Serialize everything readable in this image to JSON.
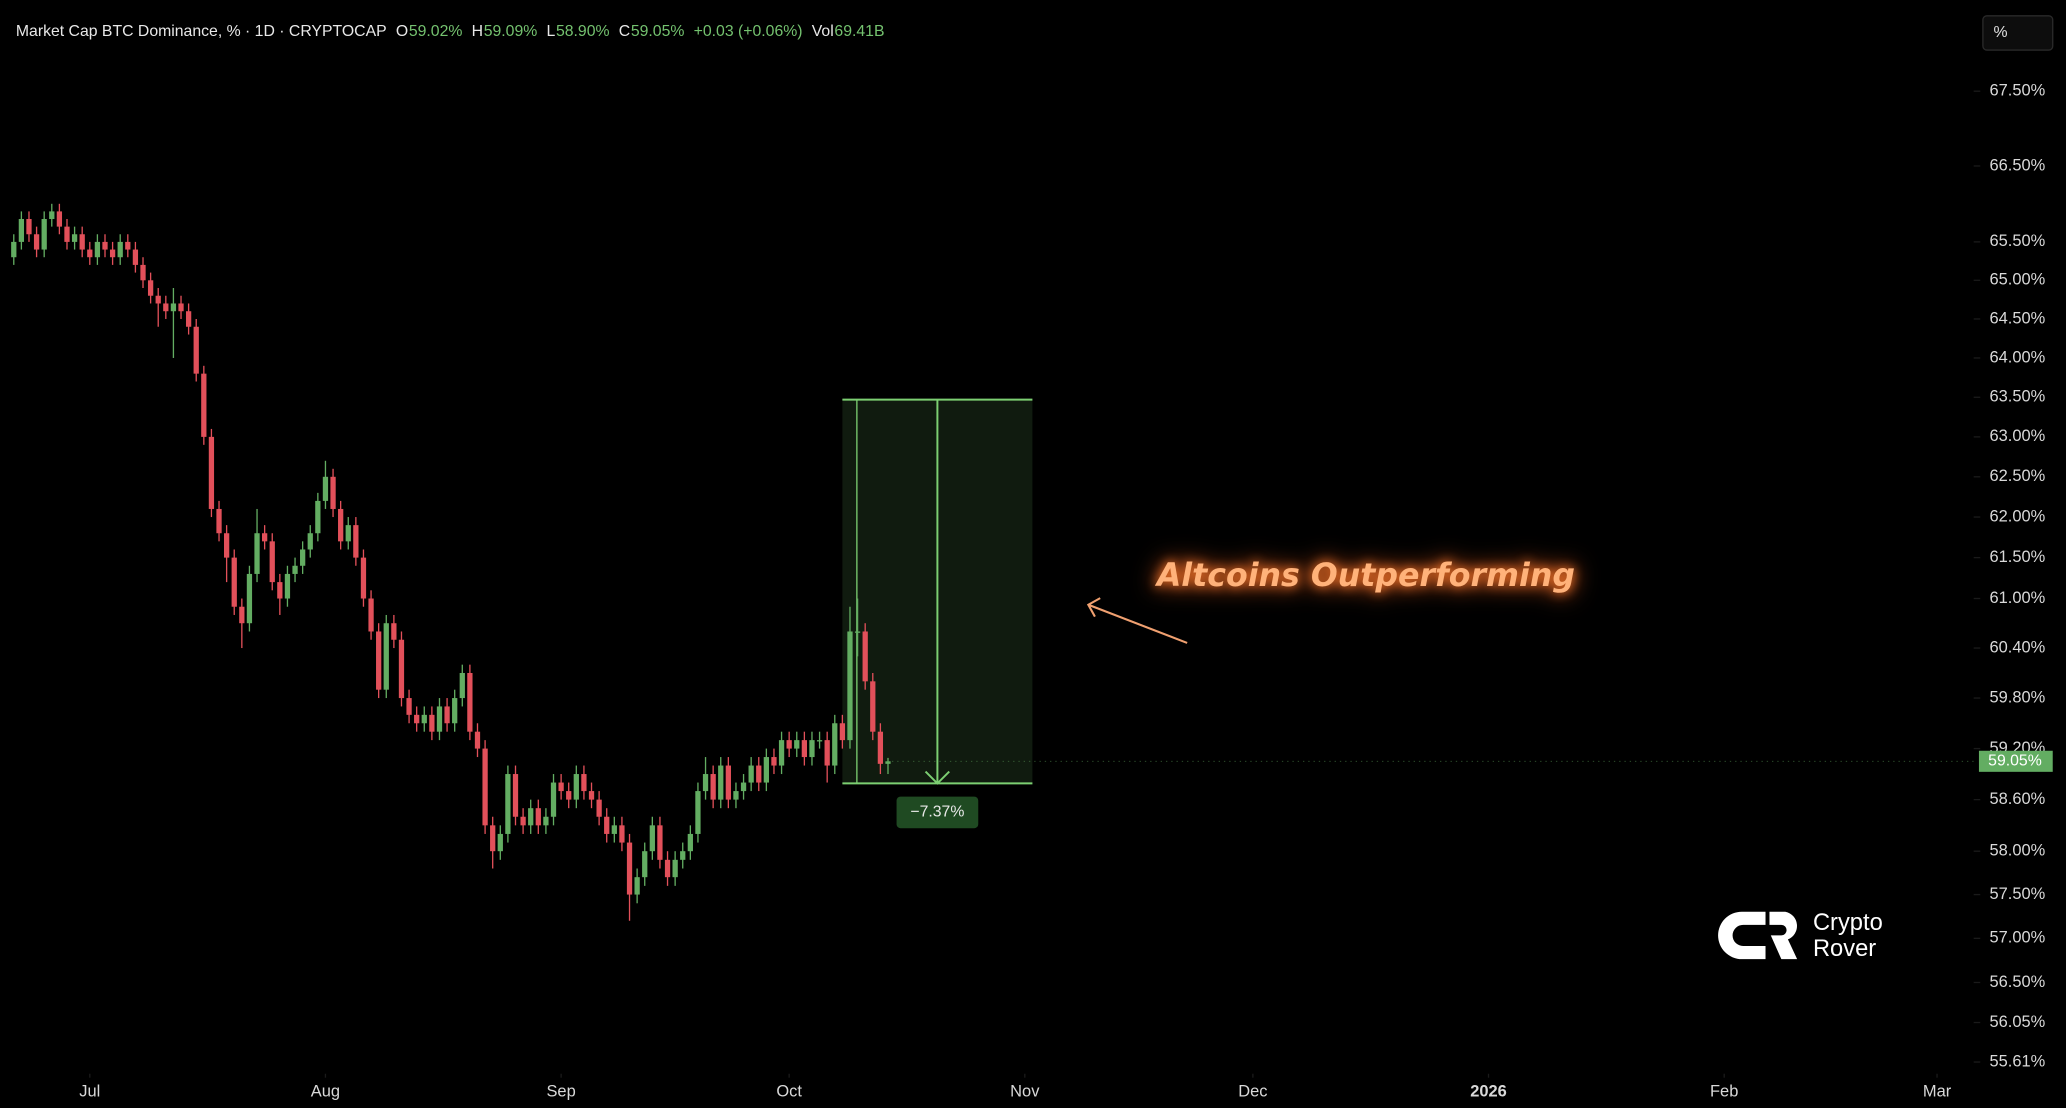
{
  "header": {
    "title": "Market Cap BTC Dominance, % · 1D · CRYPTOCAP",
    "ohlc": [
      {
        "key": "O",
        "value": "59.02%"
      },
      {
        "key": "H",
        "value": "59.09%"
      },
      {
        "key": "L",
        "value": "58.90%"
      },
      {
        "key": "C",
        "value": "59.05%"
      }
    ],
    "change": "+0.03 (+0.06%)",
    "vol_key": "Vol",
    "vol": "69.41B"
  },
  "percent_button": "%",
  "logo": [
    "Crypto",
    "Rover"
  ],
  "chart_data": {
    "type": "candlestick",
    "log": true,
    "up_color": "#63ad62",
    "down_color": "#e2505a",
    "xlim": [
      -11.8,
      247.3
    ],
    "ylim": [
      55.48,
      68.74
    ],
    "xticks": [
      {
        "value": 0,
        "label": "Jul"
      },
      {
        "value": 31,
        "label": "Aug"
      },
      {
        "value": 62,
        "label": "Sep"
      },
      {
        "value": 92,
        "label": "Oct"
      },
      {
        "value": 123,
        "label": "Nov"
      },
      {
        "value": 153,
        "label": "Dec"
      },
      {
        "value": 184,
        "label": "2026"
      },
      {
        "value": 215,
        "label": "Feb"
      },
      {
        "value": 243,
        "label": "Mar"
      }
    ],
    "yticks": [
      {
        "value": 67.5,
        "label": "67.50%"
      },
      {
        "value": 66.5,
        "label": "66.50%"
      },
      {
        "value": 65.5,
        "label": "65.50%"
      },
      {
        "value": 65,
        "label": "65.00%"
      },
      {
        "value": 64.5,
        "label": "64.50%"
      },
      {
        "value": 64,
        "label": "64.00%"
      },
      {
        "value": 63.5,
        "label": "63.50%"
      },
      {
        "value": 63,
        "label": "63.00%"
      },
      {
        "value": 62.5,
        "label": "62.50%"
      },
      {
        "value": 62,
        "label": "62.00%"
      },
      {
        "value": 61.5,
        "label": "61.50%"
      },
      {
        "value": 61,
        "label": "61.00%"
      },
      {
        "value": 60.4,
        "label": "60.40%"
      },
      {
        "value": 59.8,
        "label": "59.80%"
      },
      {
        "value": 59.2,
        "label": "59.20%"
      },
      {
        "value": 58.6,
        "label": "58.60%"
      },
      {
        "value": 58,
        "label": "58.00%"
      },
      {
        "value": 57.5,
        "label": "57.50%"
      },
      {
        "value": 57,
        "label": "57.00%"
      },
      {
        "value": 56.5,
        "label": "56.50%"
      },
      {
        "value": 56.05,
        "label": "56.05%"
      },
      {
        "value": 55.61,
        "label": "55.61%"
      }
    ],
    "x": [
      -10,
      -9,
      -8,
      -7,
      -6,
      -5,
      -4,
      -3,
      -2,
      -1,
      0,
      1,
      2,
      3,
      4,
      5,
      6,
      7,
      8,
      9,
      10,
      11,
      12,
      13,
      14,
      15,
      16,
      17,
      18,
      19,
      20,
      21,
      22,
      23,
      24,
      25,
      26,
      27,
      28,
      29,
      30,
      31,
      32,
      33,
      34,
      35,
      36,
      37,
      38,
      39,
      40,
      41,
      42,
      43,
      44,
      45,
      46,
      47,
      48,
      49,
      50,
      51,
      52,
      53,
      54,
      55,
      56,
      57,
      58,
      59,
      60,
      61,
      62,
      63,
      64,
      65,
      66,
      67,
      68,
      69,
      70,
      71,
      72,
      73,
      74,
      75,
      76,
      77,
      78,
      79,
      80,
      81,
      82,
      83,
      84,
      85,
      86,
      87,
      88,
      89,
      90,
      91,
      92,
      93,
      94,
      95,
      96,
      97,
      98,
      99,
      100,
      101,
      102,
      103,
      104,
      105
    ],
    "open": [
      65.3,
      65.5,
      65.8,
      65.6,
      65.4,
      65.8,
      65.9,
      65.7,
      65.5,
      65.6,
      65.4,
      65.3,
      65.5,
      65.4,
      65.3,
      65.5,
      65.4,
      65.2,
      65.0,
      64.8,
      64.7,
      64.6,
      64.7,
      64.6,
      64.4,
      63.8,
      63.0,
      62.1,
      61.8,
      61.5,
      60.9,
      60.7,
      61.3,
      61.8,
      61.7,
      61.2,
      61.0,
      61.3,
      61.4,
      61.6,
      61.8,
      62.2,
      62.5,
      62.1,
      61.7,
      61.9,
      61.5,
      61.0,
      60.6,
      59.9,
      60.7,
      60.5,
      59.8,
      59.6,
      59.5,
      59.6,
      59.4,
      59.7,
      59.5,
      59.8,
      60.1,
      59.4,
      59.2,
      58.3,
      58.0,
      58.2,
      58.9,
      58.4,
      58.3,
      58.5,
      58.3,
      58.4,
      58.8,
      58.7,
      58.6,
      58.9,
      58.7,
      58.6,
      58.4,
      58.2,
      58.3,
      58.1,
      57.5,
      57.7,
      58.0,
      58.3,
      57.9,
      57.7,
      57.9,
      58.0,
      58.2,
      58.7,
      58.9,
      58.6,
      59.0,
      58.6,
      58.7,
      58.8,
      59.0,
      58.8,
      59.1,
      59.0,
      59.3,
      59.2,
      59.3,
      59.1,
      59.3,
      59.3,
      59.0,
      59.5,
      59.3,
      60.6,
      60.6,
      60.0,
      59.4,
      59.02
    ],
    "high": [
      65.6,
      65.9,
      65.9,
      65.7,
      65.9,
      66.0,
      66.0,
      65.8,
      65.7,
      65.7,
      65.5,
      65.6,
      65.6,
      65.5,
      65.6,
      65.6,
      65.5,
      65.3,
      65.1,
      64.9,
      64.8,
      64.9,
      64.8,
      64.7,
      64.5,
      63.9,
      63.1,
      62.2,
      61.9,
      61.6,
      61.0,
      61.4,
      62.1,
      61.9,
      61.8,
      61.3,
      61.4,
      61.5,
      61.7,
      61.9,
      62.3,
      62.7,
      62.6,
      62.2,
      62.0,
      62.0,
      61.6,
      61.1,
      60.7,
      60.8,
      60.8,
      60.6,
      59.9,
      59.7,
      59.7,
      59.7,
      59.8,
      59.8,
      59.9,
      60.2,
      60.2,
      59.5,
      59.3,
      58.4,
      58.3,
      59.0,
      59.0,
      58.5,
      58.6,
      58.6,
      58.5,
      58.9,
      58.9,
      58.8,
      59.0,
      59.0,
      58.8,
      58.7,
      58.5,
      58.4,
      58.4,
      58.2,
      57.8,
      58.1,
      58.4,
      58.4,
      58.0,
      58.0,
      58.1,
      58.3,
      58.8,
      59.1,
      59.0,
      59.1,
      59.1,
      58.8,
      58.9,
      59.1,
      59.1,
      59.2,
      59.2,
      59.4,
      59.4,
      59.4,
      59.4,
      59.4,
      59.4,
      59.4,
      59.6,
      59.6,
      60.9,
      61.0,
      60.7,
      60.1,
      59.5,
      59.09
    ],
    "low": [
      65.2,
      65.4,
      65.5,
      65.3,
      65.3,
      65.7,
      65.6,
      65.4,
      65.4,
      65.3,
      65.2,
      65.2,
      65.3,
      65.2,
      65.2,
      65.3,
      65.1,
      64.9,
      64.7,
      64.4,
      64.5,
      64.0,
      64.5,
      64.3,
      63.7,
      62.9,
      62.0,
      61.7,
      61.2,
      60.8,
      60.4,
      60.6,
      61.2,
      61.6,
      61.1,
      60.8,
      60.9,
      61.2,
      61.3,
      61.5,
      61.7,
      62.1,
      62.0,
      61.6,
      61.6,
      61.4,
      60.9,
      60.5,
      59.8,
      59.8,
      60.4,
      59.7,
      59.5,
      59.4,
      59.4,
      59.3,
      59.3,
      59.4,
      59.4,
      59.7,
      59.3,
      59.1,
      58.2,
      57.8,
      57.9,
      58.1,
      58.3,
      58.2,
      58.2,
      58.2,
      58.2,
      58.3,
      58.6,
      58.5,
      58.5,
      58.6,
      58.5,
      58.3,
      58.1,
      58.1,
      58.0,
      57.2,
      57.4,
      57.6,
      57.9,
      57.8,
      57.6,
      57.6,
      57.8,
      57.9,
      58.1,
      58.6,
      58.5,
      58.5,
      58.5,
      58.5,
      58.6,
      58.7,
      58.7,
      58.7,
      58.9,
      58.9,
      59.1,
      59.1,
      59.0,
      59.0,
      59.2,
      58.8,
      58.9,
      59.2,
      59.2,
      60.3,
      59.9,
      59.3,
      58.9,
      58.9
    ],
    "close": [
      65.5,
      65.8,
      65.6,
      65.4,
      65.8,
      65.9,
      65.7,
      65.5,
      65.6,
      65.4,
      65.3,
      65.5,
      65.4,
      65.3,
      65.5,
      65.4,
      65.2,
      65.0,
      64.8,
      64.7,
      64.6,
      64.7,
      64.6,
      64.4,
      63.8,
      63.0,
      62.1,
      61.8,
      61.5,
      60.9,
      60.7,
      61.3,
      61.8,
      61.7,
      61.2,
      61.0,
      61.3,
      61.4,
      61.6,
      61.8,
      62.2,
      62.5,
      62.1,
      61.7,
      61.9,
      61.5,
      61.0,
      60.6,
      59.9,
      60.7,
      60.5,
      59.8,
      59.6,
      59.5,
      59.6,
      59.4,
      59.7,
      59.5,
      59.8,
      60.1,
      59.4,
      59.2,
      58.3,
      58.0,
      58.2,
      58.9,
      58.4,
      58.3,
      58.5,
      58.3,
      58.4,
      58.8,
      58.7,
      58.6,
      58.9,
      58.7,
      58.6,
      58.4,
      58.2,
      58.3,
      58.1,
      57.5,
      57.7,
      58.0,
      58.3,
      57.9,
      57.7,
      57.9,
      58.0,
      58.2,
      58.7,
      58.9,
      58.6,
      59.0,
      58.6,
      58.7,
      58.8,
      59.0,
      58.8,
      59.1,
      59.0,
      59.3,
      59.2,
      59.3,
      59.1,
      59.3,
      59.3,
      59.0,
      59.5,
      59.3,
      60.6,
      60.6,
      60.0,
      59.4,
      59.02,
      59.05
    ],
    "measure": {
      "from": 63.47,
      "to": 58.79,
      "x": [
        99,
        124
      ],
      "label": "−7.37%",
      "color": "#7ccf72"
    },
    "annotation": "Altcoins Outperforming"
  }
}
